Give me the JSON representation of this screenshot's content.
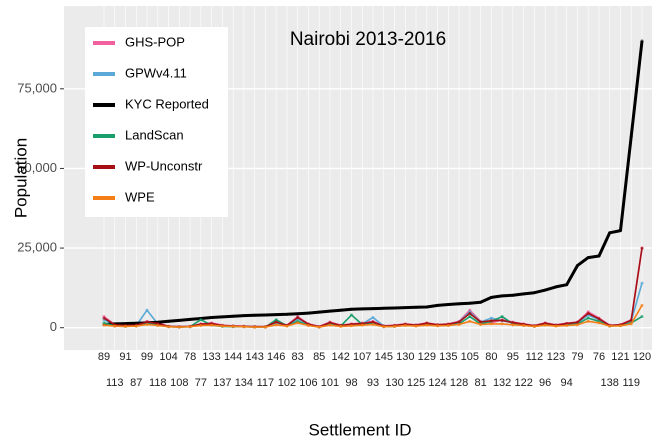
{
  "chart_data": {
    "type": "line",
    "title": "Nairobi 2013-2016",
    "x_label": "Settlement ID",
    "y_label": "Population",
    "categories": [
      89,
      113,
      91,
      87,
      99,
      118,
      104,
      108,
      78,
      77,
      133,
      137,
      144,
      134,
      143,
      117,
      146,
      102,
      83,
      106,
      85,
      101,
      142,
      98,
      107,
      93,
      145,
      130,
      130,
      125,
      129,
      124,
      135,
      128,
      105,
      81,
      80,
      132,
      95,
      122,
      112,
      96,
      123,
      94,
      79,
      null,
      76,
      138,
      121,
      119,
      120
    ],
    "ylim": [
      -7000,
      101000
    ],
    "yticks": [
      0,
      {
        "value": 25000,
        "label": "25,000"
      },
      {
        "value": 50000,
        "label": "50,000"
      },
      {
        "value": 75000,
        "label": "75,000"
      }
    ],
    "grid": true,
    "legend": "top-left",
    "series": [
      {
        "name": "GHS-POP",
        "color": "#f2609e",
        "values": [
          3500,
          1000,
          800,
          900,
          2000,
          1500,
          500,
          300,
          400,
          1200,
          1500,
          800,
          600,
          500,
          400,
          300,
          2000,
          800,
          3500,
          1200,
          400,
          1800,
          800,
          1200,
          1500,
          2000,
          600,
          800,
          1200,
          900,
          1500,
          1000,
          1200,
          2000,
          5500,
          2000,
          1500,
          2500,
          1800,
          1200,
          700,
          1500,
          900,
          1400,
          1800,
          5000,
          3000,
          800,
          1000,
          2500,
          25000
        ]
      },
      {
        "name": "GPWv4.11",
        "color": "#5aa9d6",
        "values": [
          2500,
          800,
          600,
          700,
          5500,
          1200,
          400,
          300,
          300,
          900,
          1200,
          600,
          500,
          400,
          300,
          300,
          1500,
          600,
          2800,
          1000,
          300,
          1500,
          700,
          1000,
          1200,
          3200,
          500,
          600,
          1000,
          800,
          1300,
          800,
          1000,
          1800,
          5000,
          1800,
          3000,
          2200,
          1500,
          1000,
          600,
          1200,
          800,
          1200,
          1500,
          4000,
          2500,
          700,
          900,
          2000,
          14000
        ]
      },
      {
        "name": "KYC Reported",
        "color": "#000000",
        "values": [
          1000,
          1200,
          1300,
          1400,
          1500,
          1700,
          2000,
          2300,
          2600,
          2900,
          3200,
          3400,
          3600,
          3800,
          3900,
          4000,
          4100,
          4200,
          4400,
          4600,
          4900,
          5200,
          5500,
          5800,
          5900,
          6000,
          6100,
          6200,
          6300,
          6400,
          6500,
          7000,
          7300,
          7500,
          7700,
          8000,
          9500,
          10000,
          10200,
          10600,
          11000,
          11800,
          12800,
          13500,
          19500,
          22000,
          22500,
          29800,
          30500,
          60000,
          90000
        ]
      },
      {
        "name": "LandScan",
        "color": "#1a9e6a",
        "values": [
          1500,
          500,
          400,
          500,
          1500,
          800,
          300,
          200,
          300,
          2500,
          800,
          400,
          300,
          300,
          200,
          200,
          2500,
          600,
          2000,
          800,
          200,
          1000,
          500,
          4000,
          1000,
          1500,
          300,
          400,
          800,
          600,
          1000,
          600,
          800,
          1200,
          3500,
          1200,
          2000,
          3500,
          1200,
          800,
          400,
          900,
          600,
          1000,
          1200,
          3000,
          2000,
          500,
          700,
          1500,
          3500
        ]
      },
      {
        "name": "WP-Unconstr",
        "color": "#a50f15",
        "values": [
          3000,
          900,
          700,
          800,
          1800,
          1300,
          400,
          300,
          400,
          1100,
          1300,
          700,
          500,
          400,
          300,
          300,
          1800,
          700,
          3200,
          1100,
          300,
          1600,
          700,
          1100,
          1300,
          1800,
          500,
          700,
          1100,
          800,
          1400,
          900,
          1100,
          1800,
          4500,
          1800,
          2200,
          2300,
          1600,
          1100,
          600,
          1400,
          800,
          1300,
          1700,
          4500,
          2800,
          700,
          900,
          2300,
          25000
        ]
      },
      {
        "name": "WPE",
        "color": "#f57f17",
        "values": [
          800,
          500,
          400,
          500,
          1000,
          700,
          300,
          200,
          300,
          700,
          800,
          500,
          400,
          300,
          200,
          200,
          900,
          500,
          1500,
          700,
          200,
          800,
          400,
          600,
          800,
          1000,
          300,
          400,
          700,
          500,
          800,
          600,
          700,
          1000,
          2000,
          1000,
          1200,
          1200,
          900,
          700,
          400,
          800,
          500,
          700,
          900,
          2000,
          1500,
          500,
          600,
          1200,
          7000
        ]
      }
    ]
  }
}
